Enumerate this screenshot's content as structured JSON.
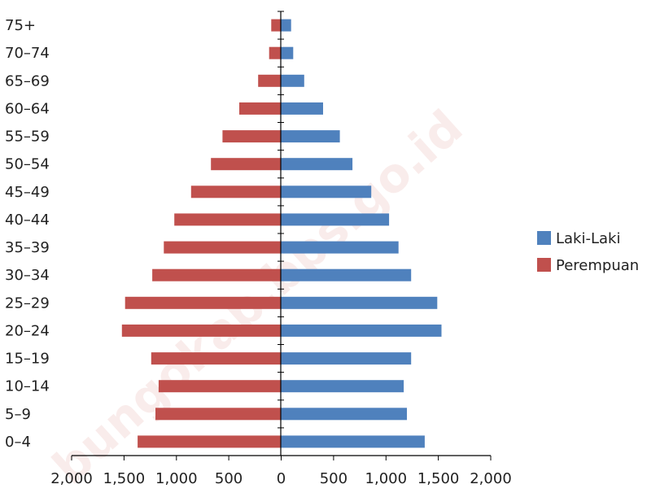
{
  "watermark": "bungokab.bps.go.id",
  "chart_data": {
    "type": "bar",
    "orientation": "horizontal",
    "layout": "population-pyramid",
    "title": "",
    "xlabel": "",
    "ylabel": "",
    "categories": [
      "0–4",
      "5–9",
      "10–14",
      "15–19",
      "20–24",
      "25–29",
      "30–34",
      "35–39",
      "40–44",
      "45–49",
      "50–54",
      "55–59",
      "60–64",
      "65–69",
      "70–74",
      "75+"
    ],
    "series": [
      {
        "name": "Laki-Laki",
        "side": "right",
        "color": "#4f81bd",
        "values": [
          1370,
          1200,
          1170,
          1240,
          1530,
          1490,
          1240,
          1120,
          1030,
          860,
          680,
          560,
          400,
          220,
          115,
          95
        ]
      },
      {
        "name": "Perempuan",
        "side": "left",
        "color": "#c0504d",
        "values": [
          1370,
          1200,
          1170,
          1240,
          1520,
          1490,
          1230,
          1120,
          1020,
          860,
          670,
          560,
          400,
          220,
          115,
          95
        ]
      }
    ],
    "xlim": [
      -2000,
      2000
    ],
    "xticks": [
      -2000,
      -1500,
      -1000,
      -500,
      0,
      500,
      1000,
      1500,
      2000
    ],
    "xtick_labels": [
      "2,000",
      "1,500",
      "1,000",
      "500",
      "0",
      "500",
      "1,000",
      "1,500",
      "2,000"
    ],
    "grid": false,
    "legend_position": "right"
  }
}
